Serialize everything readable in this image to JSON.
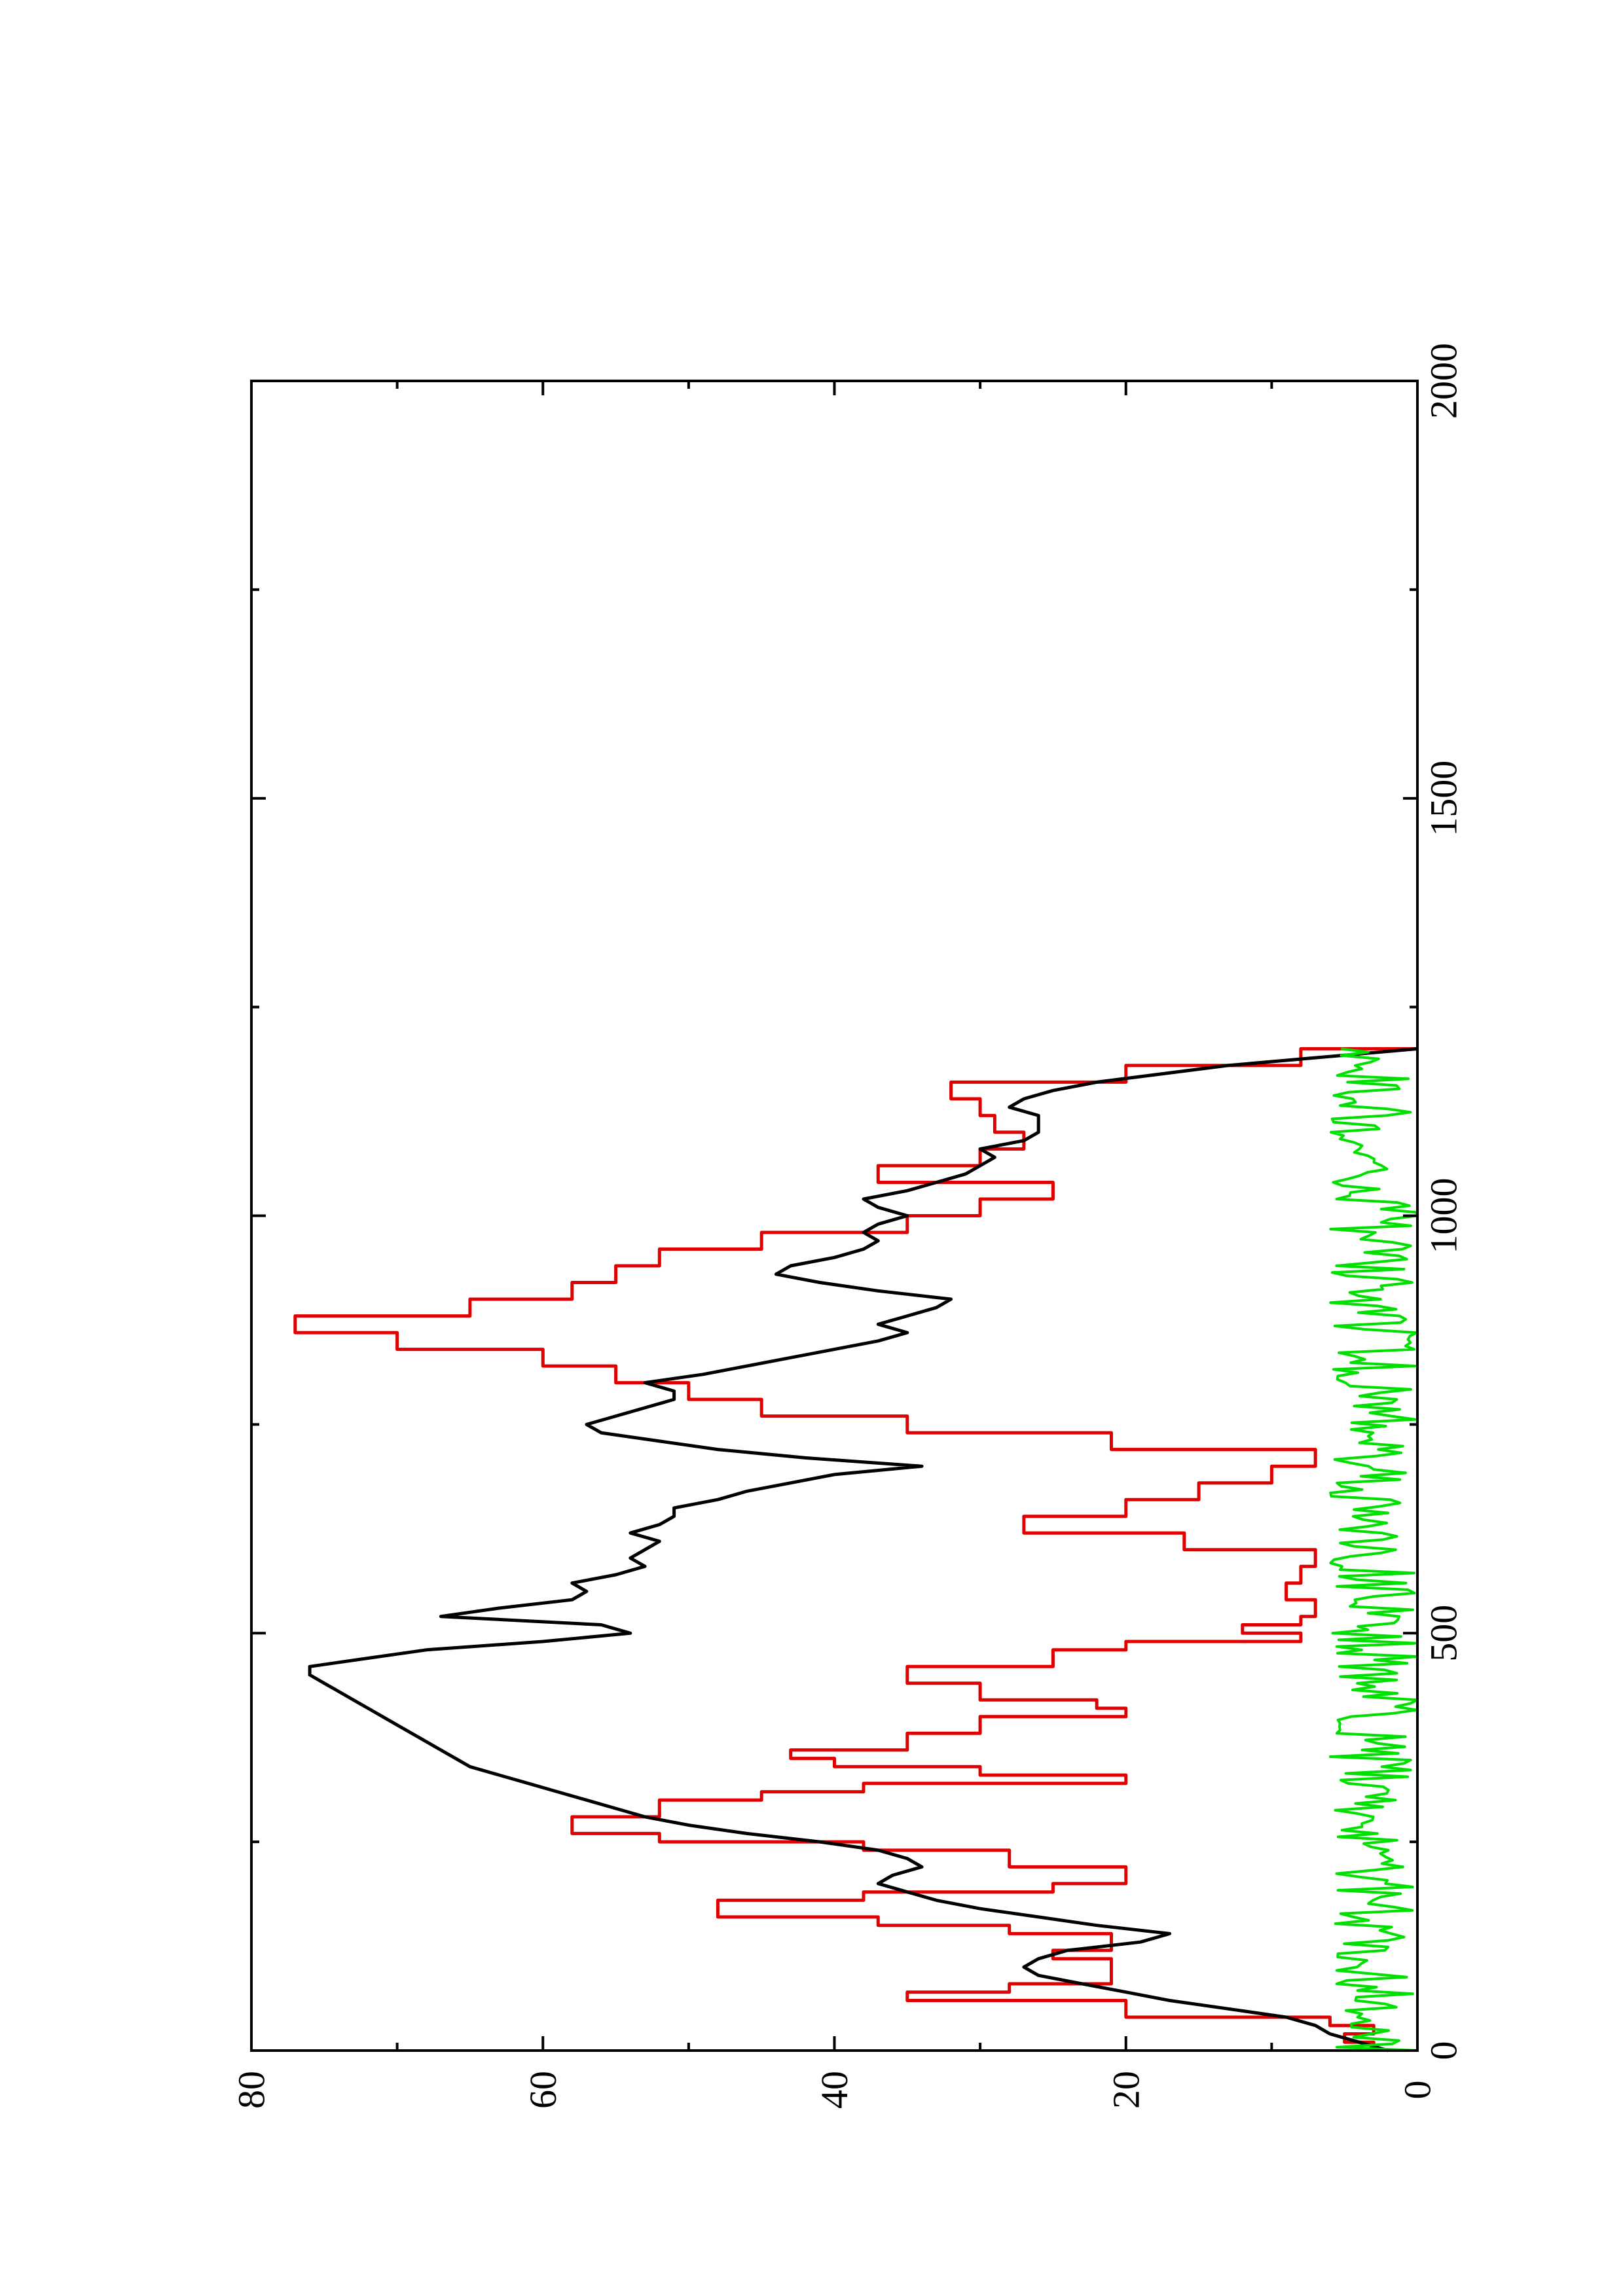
{
  "chart_data": {
    "type": "line",
    "title": "",
    "xlabel": "",
    "ylabel": "",
    "orientation": "rotated-90-clockwise",
    "xlim": [
      0,
      2000
    ],
    "ylim": [
      0,
      80
    ],
    "x_ticks": [
      0,
      500,
      1000,
      1500,
      2000
    ],
    "x_tick_labels": [
      "0",
      "500",
      "1000",
      "1500",
      "2000"
    ],
    "y_ticks": [
      0,
      20,
      40,
      60,
      80
    ],
    "y_tick_labels": [
      "0",
      "20",
      "40",
      "60",
      "80"
    ],
    "grid": false,
    "legend": "none",
    "series": [
      {
        "color": "#e00000",
        "style": "step",
        "x": [
          0,
          10,
          20,
          30,
          40,
          60,
          70,
          80,
          110,
          120,
          140,
          150,
          160,
          180,
          190,
          200,
          220,
          240,
          250,
          260,
          280,
          300,
          310,
          320,
          330,
          340,
          350,
          360,
          380,
          400,
          410,
          420,
          440,
          460,
          480,
          490,
          500,
          510,
          520,
          540,
          560,
          580,
          600,
          620,
          640,
          660,
          680,
          700,
          720,
          740,
          760,
          780,
          800,
          820,
          840,
          860,
          880,
          900,
          920,
          940,
          960,
          980,
          1000,
          1020,
          1040,
          1060,
          1080,
          1100,
          1120,
          1140,
          1160,
          1180,
          1200
        ],
        "y": [
          3,
          5,
          3,
          6,
          20,
          35,
          28,
          21,
          25,
          21,
          28,
          37,
          48,
          38,
          25,
          20,
          28,
          38,
          52,
          58,
          52,
          45,
          38,
          20,
          30,
          40,
          43,
          35,
          30,
          20,
          22,
          30,
          35,
          25,
          20,
          8,
          12,
          8,
          7,
          9,
          8,
          7,
          16,
          27,
          20,
          15,
          10,
          7,
          21,
          35,
          45,
          50,
          55,
          60,
          70,
          77,
          65,
          58,
          55,
          52,
          45,
          35,
          30,
          25,
          37,
          30,
          27,
          29,
          30,
          32,
          20,
          8,
          0
        ]
      },
      {
        "color": "#000000",
        "style": "line",
        "x": [
          0,
          10,
          20,
          30,
          40,
          50,
          60,
          70,
          80,
          90,
          100,
          110,
          120,
          130,
          140,
          150,
          160,
          170,
          180,
          190,
          200,
          210,
          220,
          230,
          240,
          250,
          260,
          270,
          280,
          290,
          300,
          310,
          320,
          330,
          340,
          350,
          360,
          370,
          380,
          390,
          400,
          410,
          420,
          430,
          440,
          450,
          460,
          470,
          480,
          490,
          500,
          510,
          520,
          530,
          540,
          550,
          560,
          570,
          580,
          590,
          600,
          610,
          620,
          630,
          640,
          650,
          660,
          670,
          680,
          690,
          700,
          710,
          720,
          730,
          740,
          750,
          760,
          770,
          780,
          790,
          800,
          810,
          820,
          830,
          840,
          850,
          860,
          870,
          880,
          890,
          900,
          910,
          920,
          930,
          940,
          950,
          960,
          970,
          980,
          990,
          1000,
          1010,
          1020,
          1030,
          1040,
          1050,
          1060,
          1070,
          1080,
          1090,
          1100,
          1110,
          1120,
          1130,
          1140,
          1150,
          1160,
          1180,
          1200
        ],
        "y": [
          2,
          4,
          6,
          7,
          9,
          13,
          17,
          20,
          23,
          26,
          27,
          26,
          24,
          19,
          17,
          22,
          26,
          30,
          33,
          35,
          37,
          36,
          34,
          35,
          37,
          41,
          46,
          50,
          53,
          55,
          57,
          59,
          61,
          63,
          65,
          66,
          67,
          68,
          69,
          70,
          71,
          72,
          73,
          74,
          75,
          76,
          76,
          72,
          68,
          60,
          54,
          56,
          67,
          63,
          58,
          57,
          58,
          55,
          53,
          54,
          53,
          52,
          54,
          52,
          51,
          51,
          48,
          46,
          43,
          40,
          34,
          42,
          48,
          52,
          56,
          57,
          55,
          53,
          51,
          51,
          53,
          49,
          46,
          43,
          40,
          37,
          35,
          37,
          35,
          33,
          32,
          37,
          41,
          44,
          43,
          40,
          38,
          37,
          38,
          37,
          35,
          37,
          38,
          35,
          33,
          31,
          30,
          29,
          30,
          27,
          26,
          26,
          26,
          28,
          27,
          25,
          22,
          13,
          0
        ]
      },
      {
        "color": "#00e000",
        "style": "noise",
        "x_max": 1200,
        "baseline": 3,
        "amplitude": 3
      }
    ]
  }
}
